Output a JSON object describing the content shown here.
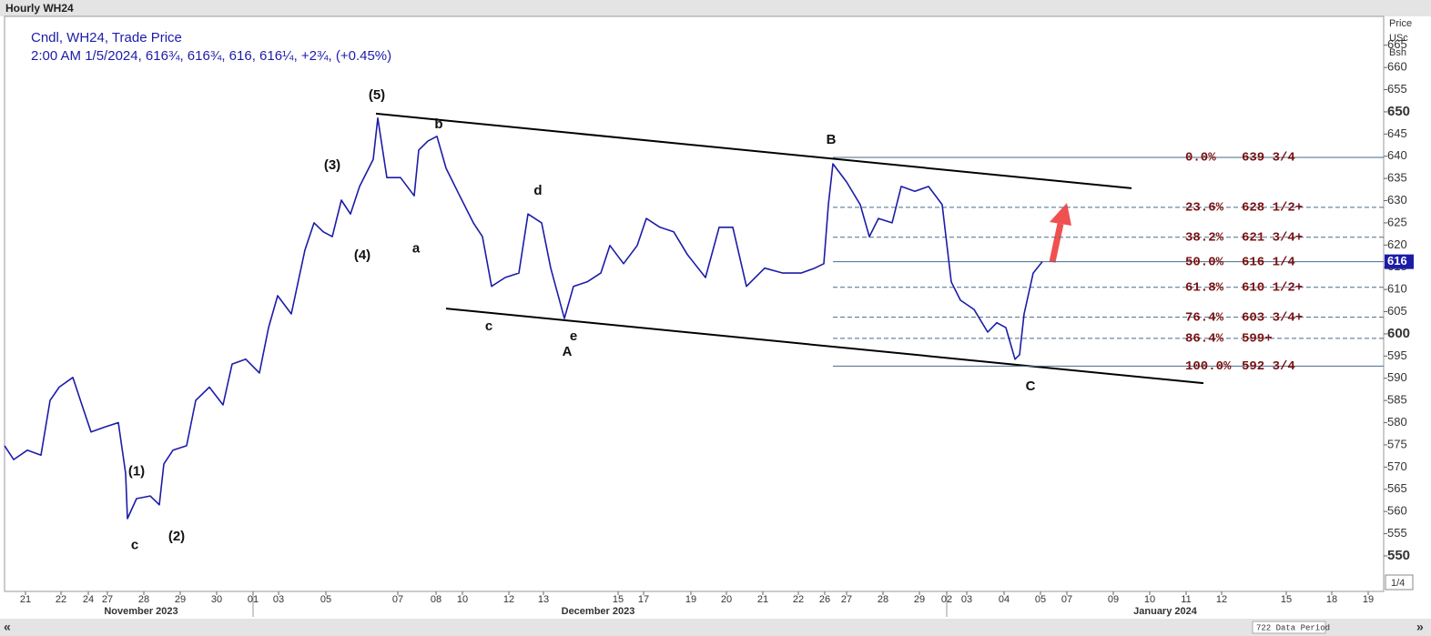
{
  "chart_data": {
    "type": "line",
    "title": "Hourly WH24",
    "subtitle": "Cndl, WH24, Trade Price",
    "quote": "2:00 AM 1/5/2024, 616¾, 616¾, 616, 616¼, +2¾, (+0.45%)",
    "axis_header": [
      "Price",
      "USc",
      "Bsh"
    ],
    "axis_footer": "1/4",
    "status": "722 Data Period",
    "nav": [
      "«",
      "»"
    ],
    "series": [
      {
        "name": "WH24",
        "color": "#1c1ca8",
        "x": [
          0.5,
          1.5,
          3,
          4.5,
          5.5,
          6.5,
          8,
          9,
          10,
          11.5,
          13,
          13.8,
          14,
          15,
          16.5,
          17.5,
          18,
          19,
          20.5,
          21.5,
          23,
          24.5,
          25.5,
          27,
          28.5,
          29.5,
          30.5,
          32,
          33.5,
          34.5,
          35.5,
          36.5,
          37.5,
          38.5,
          39.5,
          41,
          41.5,
          42.5,
          44,
          45.5,
          46,
          47,
          48,
          49,
          50.5,
          52,
          53,
          54,
          55.5,
          57,
          58,
          59.5,
          60.5,
          62,
          63,
          64.5,
          66,
          67,
          68.5,
          70,
          71,
          72.5,
          74,
          75.5,
          77.5,
          79,
          80.5,
          82,
          84,
          86,
          88,
          89.5,
          90.5,
          91,
          91.5,
          93,
          94.5,
          95.5,
          96.5,
          98,
          99,
          100.5,
          102,
          103.5,
          104.5,
          105.5,
          107,
          108.5,
          109.5,
          110.5,
          111.5,
          112,
          112.5,
          113.5,
          114.5
        ],
        "values": [
          574.8,
          571.7,
          573.8,
          572.7,
          585,
          588,
          590.2,
          584,
          577.9,
          579,
          580,
          568.6,
          558.4,
          562.9,
          563.5,
          561.5,
          570.7,
          573.8,
          574.8,
          585,
          588,
          584,
          593.2,
          594.3,
          591.2,
          601.4,
          608.6,
          604.5,
          618.9,
          625,
          623,
          621.9,
          630.1,
          627,
          633.2,
          639.3,
          648.6,
          635.2,
          635.2,
          631.1,
          641.4,
          643.4,
          644.5,
          637.3,
          631.1,
          625,
          621.9,
          610.7,
          612.7,
          613.7,
          627,
          625,
          614.8,
          603.5,
          610.7,
          611.7,
          613.7,
          619.9,
          615.8,
          619.9,
          626,
          624,
          623,
          617.9,
          612.7,
          624,
          624,
          610.7,
          614.8,
          613.7,
          613.7,
          614.8,
          615.8,
          629.1,
          638.3,
          634.2,
          629.1,
          621.9,
          626,
          625,
          633.2,
          632.1,
          633.2,
          629.1,
          611.7,
          607.6,
          605.5,
          600.4,
          602.5,
          601.4,
          594.3,
          595.3,
          604.5,
          613.7,
          616.25
        ]
      }
    ],
    "last_price": {
      "value": 616.25,
      "label": "616"
    },
    "xlim": [
      0.5,
      152
    ],
    "ylim": [
      542,
      671.5
    ],
    "yticks": [
      550,
      555,
      560,
      565,
      570,
      575,
      580,
      585,
      590,
      595,
      600,
      605,
      610,
      615,
      620,
      625,
      630,
      635,
      640,
      645,
      650,
      655,
      660,
      665
    ],
    "xticks": [
      {
        "value": 2.8,
        "label": "21"
      },
      {
        "value": 6.7,
        "label": "22"
      },
      {
        "value": 9.7,
        "label": "24"
      },
      {
        "value": 11.8,
        "label": "27"
      },
      {
        "value": 15.8,
        "label": "28"
      },
      {
        "value": 19.8,
        "label": "29"
      },
      {
        "value": 23.8,
        "label": "30"
      },
      {
        "value": 27.8,
        "label": "01"
      },
      {
        "value": 30.6,
        "label": "03"
      },
      {
        "value": 35.8,
        "label": "05"
      },
      {
        "value": 43.7,
        "label": "07"
      },
      {
        "value": 47.9,
        "label": "08"
      },
      {
        "value": 50.8,
        "label": "10"
      },
      {
        "value": 55.9,
        "label": "12"
      },
      {
        "value": 59.7,
        "label": "13"
      },
      {
        "value": 67.9,
        "label": "15"
      },
      {
        "value": 70.7,
        "label": "17"
      },
      {
        "value": 75.9,
        "label": "19"
      },
      {
        "value": 79.8,
        "label": "20"
      },
      {
        "value": 83.8,
        "label": "21"
      },
      {
        "value": 87.7,
        "label": "22"
      },
      {
        "value": 90.6,
        "label": "26"
      },
      {
        "value": 93,
        "label": "27"
      },
      {
        "value": 97,
        "label": "28"
      },
      {
        "value": 101,
        "label": "29"
      },
      {
        "value": 104,
        "label": "02"
      },
      {
        "value": 106.2,
        "label": "03"
      },
      {
        "value": 110.3,
        "label": "04"
      },
      {
        "value": 114.3,
        "label": "05"
      },
      {
        "value": 117.2,
        "label": "07"
      },
      {
        "value": 122.3,
        "label": "09"
      },
      {
        "value": 126.3,
        "label": "10"
      },
      {
        "value": 130.3,
        "label": "11"
      },
      {
        "value": 134.2,
        "label": "12"
      },
      {
        "value": 141.3,
        "label": "15"
      },
      {
        "value": 146.3,
        "label": "18"
      },
      {
        "value": 150.3,
        "label": "19"
      }
    ],
    "x_groups": [
      {
        "value": 15.5,
        "label": "November 2023"
      },
      {
        "value": 65.7,
        "label": "December 2023"
      },
      {
        "value": 128,
        "label": "January 2024"
      }
    ],
    "trendlines": [
      {
        "x": [
          41.3,
          124.3
        ],
        "y": [
          649.6,
          632.8
        ]
      },
      {
        "x": [
          49,
          132.2
        ],
        "y": [
          605.7,
          588.9
        ]
      }
    ],
    "fib_start": 91.5,
    "fib_levels": [
      {
        "value": 639.75,
        "pct": "0.0%",
        "label": "639 3/4",
        "style": "solid"
      },
      {
        "value": 628.5,
        "pct": "23.6%",
        "label": "628 1/2+",
        "style": "dashed"
      },
      {
        "value": 621.75,
        "pct": "38.2%",
        "label": "621 3/4+",
        "style": "dashed"
      },
      {
        "value": 616.25,
        "pct": "50.0%",
        "label": "616 1/4",
        "style": "solid"
      },
      {
        "value": 610.5,
        "pct": "61.8%",
        "label": "610 1/2+",
        "style": "dashed"
      },
      {
        "value": 603.75,
        "pct": "76.4%",
        "label": "603 3/4+",
        "style": "dashed"
      },
      {
        "value": 599,
        "pct": "86.4%",
        "label": "599+",
        "style": "dashed"
      },
      {
        "value": 592.75,
        "pct": "100.0%",
        "label": "592 3/4",
        "style": "solid"
      }
    ],
    "annotations": [
      {
        "text": "(5)",
        "x": 41.4,
        "y": 653.7
      },
      {
        "text": "b",
        "x": 48.2,
        "y": 647.1
      },
      {
        "text": "(3)",
        "x": 36.5,
        "y": 637.9
      },
      {
        "text": "(4)",
        "x": 39.8,
        "y": 617.6
      },
      {
        "text": "a",
        "x": 45.7,
        "y": 619.1
      },
      {
        "text": "d",
        "x": 59.1,
        "y": 632.2
      },
      {
        "text": "c",
        "x": 53.7,
        "y": 601.6
      },
      {
        "text": "e",
        "x": 63,
        "y": 599.4
      },
      {
        "text": "A",
        "x": 62.3,
        "y": 595.9
      },
      {
        "text": "B",
        "x": 91.3,
        "y": 643.6
      },
      {
        "text": "C",
        "x": 113.2,
        "y": 588.1
      },
      {
        "text": "(1)",
        "x": 15,
        "y": 568.9
      },
      {
        "text": "(2)",
        "x": 19.4,
        "y": 554.3
      },
      {
        "text": "c",
        "x": 14.8,
        "y": 552.3
      }
    ]
  }
}
